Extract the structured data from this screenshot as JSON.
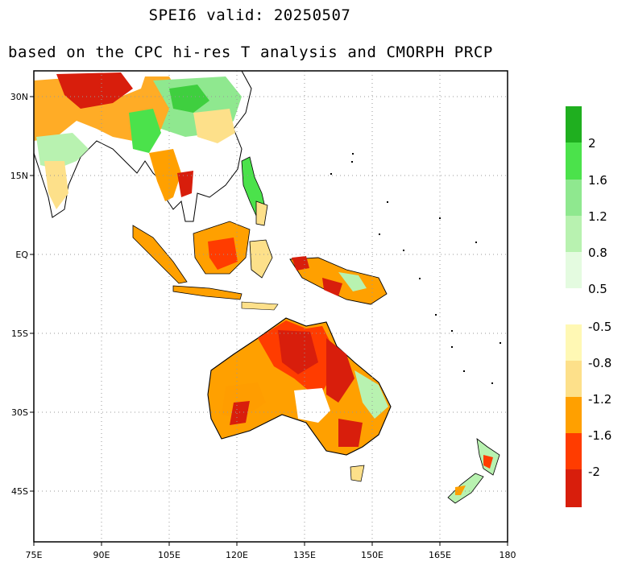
{
  "title": {
    "line1": "SPEI6  valid: 20250507",
    "line2": "based on the CPC hi-res T analysis and CMORPH PRCP"
  },
  "map": {
    "lon_range": [
      75,
      180
    ],
    "lat_range": [
      -55,
      35
    ],
    "lon_ticks": [
      "75E",
      "90E",
      "105E",
      "120E",
      "135E",
      "150E",
      "165E",
      "180"
    ],
    "lat_ticks": [
      "30N",
      "15N",
      "EQ",
      "15S",
      "30S",
      "45S"
    ],
    "region": "Southeast Asia / Australia / New Zealand"
  },
  "colorbar": {
    "wet_labels": [
      "2",
      "1.6",
      "1.2",
      "0.8",
      "0.5"
    ],
    "dry_labels": [
      "-0.5",
      "-0.8",
      "-1.2",
      "-1.6",
      "-2"
    ],
    "wet_colors": [
      "#1faf1f",
      "#4be24b",
      "#8fe88f",
      "#b8f2b0",
      "#e4fbe0"
    ],
    "dry_colors": [
      "#fff8b4",
      "#fde08a",
      "#ffa000",
      "#ff3c00",
      "#d81e0c"
    ]
  }
}
